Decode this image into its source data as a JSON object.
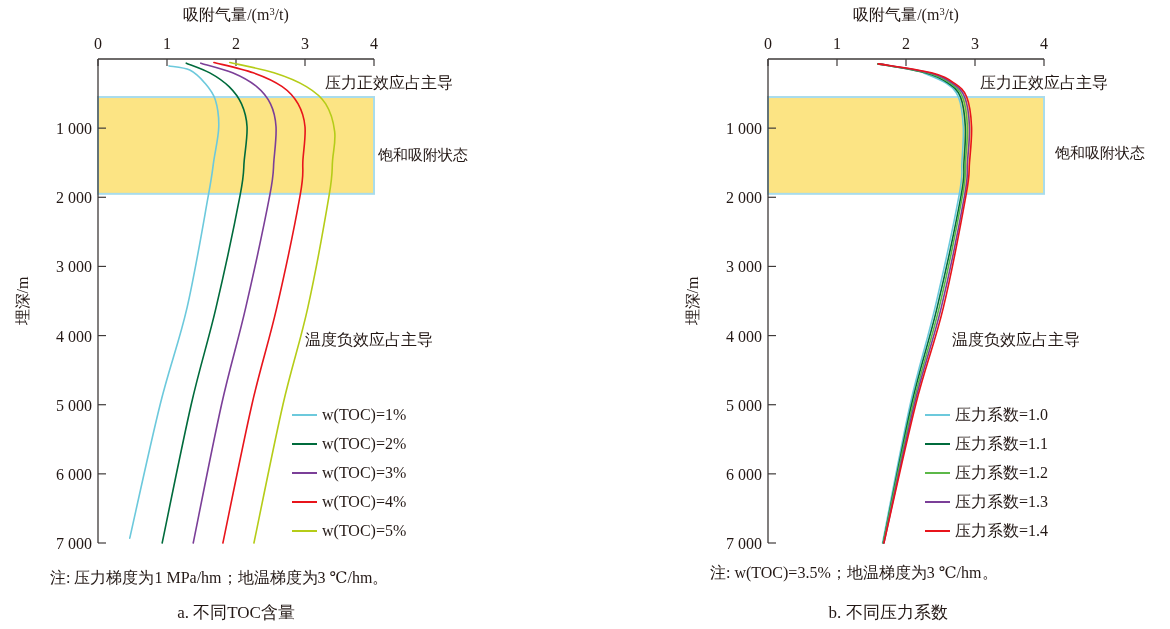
{
  "chart_data": [
    {
      "type": "line",
      "title": "a. 不同TOC含量",
      "xlabel": "吸附气量/(m$^{3}$/t)",
      "ylabel": "埋深/m",
      "xlim": [
        0,
        4
      ],
      "ylim": [
        7000,
        0
      ],
      "xticks": [
        0,
        1,
        2,
        3,
        4
      ],
      "yticks": [
        {
          "value": 1000,
          "label": "1 000"
        },
        {
          "value": 2000,
          "label": "2 000"
        },
        {
          "value": 3000,
          "label": "3 000"
        },
        {
          "value": 4000,
          "label": "4 000"
        },
        {
          "value": 5000,
          "label": "5 000"
        },
        {
          "value": 6000,
          "label": "6 000"
        },
        {
          "value": 7000,
          "label": "7 000"
        }
      ],
      "bands": [
        {
          "axis": "y",
          "from": 550,
          "to": 1950,
          "label": "饱和吸附状态",
          "color": "#fce484"
        }
      ],
      "legend": "bottom right",
      "annotations": [
        "压力正效应占主导",
        "温度负效应占主导",
        "注: 压力梯度为1 MPa/hm；地温梯度为3 ℃/hm。"
      ],
      "series": [
        {
          "name": "w(TOC)=1%",
          "color": "#6cc9dc",
          "x": [
            1.03,
            1.33,
            1.55,
            1.7,
            1.75,
            1.68,
            1.6,
            1.29,
            0.9,
            0.46
          ],
          "values": [
            100,
            160,
            350,
            590,
            980,
            1460,
            1970,
            3600,
            5000,
            6930
          ]
        },
        {
          "name": "w(TOC)=2%",
          "color": "#006b3c",
          "x": [
            1.28,
            1.62,
            1.9,
            2.08,
            2.16,
            2.12,
            2.06,
            1.71,
            1.35,
            0.93
          ],
          "values": [
            60,
            200,
            400,
            650,
            980,
            1460,
            1970,
            3600,
            5000,
            7000
          ]
        },
        {
          "name": "w(TOC)=3%",
          "color": "#7b3f98",
          "x": [
            1.49,
            1.95,
            2.3,
            2.5,
            2.58,
            2.55,
            2.49,
            2.14,
            1.79,
            1.38
          ],
          "values": [
            60,
            200,
            400,
            650,
            980,
            1460,
            1970,
            3600,
            5000,
            7000
          ]
        },
        {
          "name": "w(TOC)=4%",
          "color": "#e8141b",
          "x": [
            1.68,
            2.25,
            2.67,
            2.9,
            3.0,
            2.97,
            2.93,
            2.59,
            2.23,
            1.81
          ],
          "values": [
            50,
            200,
            400,
            650,
            980,
            1460,
            1970,
            3600,
            5000,
            7000
          ]
        },
        {
          "name": "w(TOC)=5%",
          "color": "#b5cc18",
          "x": [
            1.91,
            2.55,
            3.02,
            3.3,
            3.43,
            3.4,
            3.35,
            3.04,
            2.68,
            2.26
          ],
          "values": [
            50,
            200,
            400,
            650,
            1050,
            1460,
            1970,
            3600,
            5000,
            7000
          ]
        }
      ]
    },
    {
      "type": "line",
      "title": "b. 不同压力系数",
      "xlabel": "吸附气量/(m$^{3}$/t)",
      "ylabel": "埋深/m",
      "xlim": [
        0,
        4
      ],
      "ylim": [
        7000,
        0
      ],
      "xticks": [
        0,
        1,
        2,
        3,
        4
      ],
      "yticks": [
        {
          "value": 1000,
          "label": "1 000"
        },
        {
          "value": 2000,
          "label": "2 000"
        },
        {
          "value": 3000,
          "label": "3 000"
        },
        {
          "value": 4000,
          "label": "4 000"
        },
        {
          "value": 5000,
          "label": "5 000"
        },
        {
          "value": 6000,
          "label": "6 000"
        },
        {
          "value": 7000,
          "label": "7 000"
        }
      ],
      "bands": [
        {
          "axis": "y",
          "from": 550,
          "to": 1950,
          "label": "饱和吸附状态",
          "color": "#fce484"
        }
      ],
      "legend": "bottom right",
      "annotations": [
        "压力正效应占主导",
        "温度负效应占主导",
        "注: w(TOC)=3.5%；地温梯度为3 ℃/hm。"
      ],
      "series": [
        {
          "name": "压力系数=1.0",
          "color": "#6cc9dc",
          "x": [
            null,
            2.25,
            2.58,
            2.76,
            2.83,
            2.81,
            2.77,
            2.42,
            2.06,
            1.66
          ],
          "values": [
            null,
            200,
            350,
            550,
            980,
            1500,
            1970,
            3600,
            5000,
            7000
          ]
        },
        {
          "name": "压力系数=1.1",
          "color": "#006b3c",
          "x": [
            1.59,
            2.28,
            2.61,
            2.79,
            2.86,
            2.84,
            2.8,
            2.45,
            2.08,
            1.67
          ],
          "values": [
            70,
            200,
            350,
            550,
            980,
            1500,
            1970,
            3600,
            5000,
            7000
          ]
        },
        {
          "name": "压力系数=1.2",
          "color": "#5cb848",
          "x": [
            1.59,
            2.31,
            2.64,
            2.82,
            2.89,
            2.86,
            2.82,
            2.48,
            2.1,
            1.67
          ],
          "values": [
            70,
            200,
            350,
            550,
            980,
            1500,
            1970,
            3600,
            5000,
            7000
          ]
        },
        {
          "name": "压力系数=1.3",
          "color": "#7b3f98",
          "x": [
            1.6,
            2.34,
            2.67,
            2.85,
            2.92,
            2.89,
            2.85,
            2.51,
            2.12,
            1.68
          ],
          "values": [
            70,
            200,
            350,
            550,
            980,
            1500,
            1970,
            3600,
            5000,
            7000
          ]
        },
        {
          "name": "压力系数=1.4",
          "color": "#e8141b",
          "x": [
            1.6,
            2.37,
            2.7,
            2.88,
            2.95,
            2.92,
            2.87,
            2.54,
            2.14,
            1.68
          ],
          "values": [
            70,
            200,
            350,
            550,
            980,
            1500,
            1970,
            3600,
            5000,
            7000
          ]
        }
      ]
    }
  ]
}
